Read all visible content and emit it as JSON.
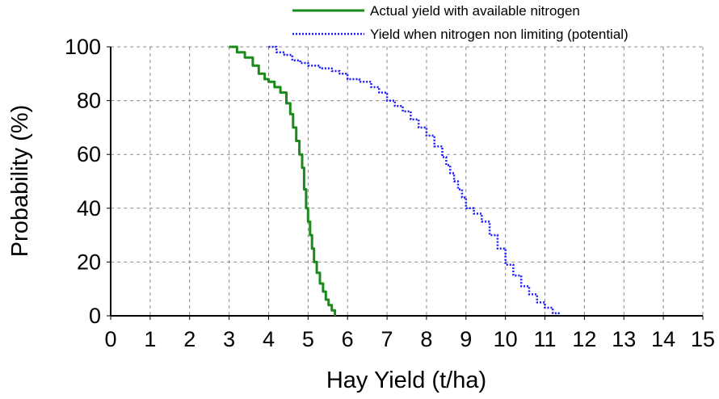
{
  "chart_data": {
    "type": "line",
    "title": "",
    "xlabel": "Hay Yield (t/ha)",
    "ylabel": "Probability (%)",
    "xlim": [
      0,
      15
    ],
    "ylim": [
      0,
      100
    ],
    "xticks": [
      "0",
      "1",
      "2",
      "3",
      "4",
      "5",
      "6",
      "7",
      "8",
      "9",
      "10",
      "11",
      "12",
      "13",
      "14",
      "15"
    ],
    "yticks": [
      "0",
      "20",
      "40",
      "60",
      "80",
      "100"
    ],
    "grid": true,
    "legend_position": "top-right",
    "series": [
      {
        "name": "Actual yield with available nitrogen",
        "color": "#1a8a1a",
        "style": "solid",
        "x": [
          3.0,
          3.2,
          3.4,
          3.6,
          3.75,
          3.9,
          4.0,
          4.15,
          4.3,
          4.45,
          4.55,
          4.62,
          4.7,
          4.78,
          4.85,
          4.9,
          4.95,
          5.0,
          5.05,
          5.1,
          5.15,
          5.22,
          5.3,
          5.38,
          5.45,
          5.52,
          5.6,
          5.68
        ],
        "y": [
          100,
          98,
          96,
          93,
          90,
          88,
          87,
          85,
          83,
          79,
          75,
          70,
          65,
          60,
          55,
          47,
          40,
          35,
          30,
          25,
          20,
          16,
          12,
          9,
          6,
          4,
          2,
          0
        ]
      },
      {
        "name": "Yield when nitrogen non limiting (potential)",
        "color": "#1a1aff",
        "style": "dotted",
        "x": [
          4.0,
          4.2,
          4.4,
          4.6,
          4.8,
          5.0,
          5.3,
          5.6,
          5.8,
          6.0,
          6.3,
          6.6,
          6.8,
          7.0,
          7.2,
          7.4,
          7.6,
          7.8,
          8.0,
          8.2,
          8.4,
          8.5,
          8.6,
          8.7,
          8.8,
          8.9,
          9.0,
          9.2,
          9.4,
          9.6,
          9.8,
          10.0,
          10.2,
          10.4,
          10.6,
          10.8,
          11.0,
          11.2,
          11.35
        ],
        "y": [
          100,
          98,
          97,
          95,
          94,
          93,
          92,
          91,
          90,
          88,
          87,
          85,
          83,
          80,
          78,
          76,
          73,
          70,
          67,
          63,
          59,
          56,
          53,
          50,
          47,
          44,
          40,
          38,
          35,
          30,
          25,
          19,
          15,
          11,
          8,
          5,
          3,
          1,
          0
        ]
      }
    ]
  }
}
